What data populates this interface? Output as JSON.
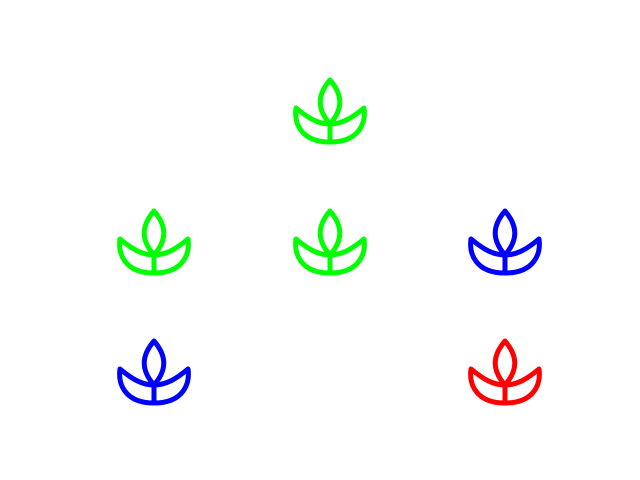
{
  "icons": [
    {
      "name": "lotus-icon",
      "color": "#00ff00"
    },
    {
      "name": "lotus-icon",
      "color": "#00ff00"
    },
    {
      "name": "lotus-icon",
      "color": "#00ff00"
    },
    {
      "name": "lotus-icon",
      "color": "#0000ff"
    },
    {
      "name": "lotus-icon",
      "color": "#0000ff"
    },
    {
      "name": "lotus-icon",
      "color": "#ff0000"
    }
  ]
}
